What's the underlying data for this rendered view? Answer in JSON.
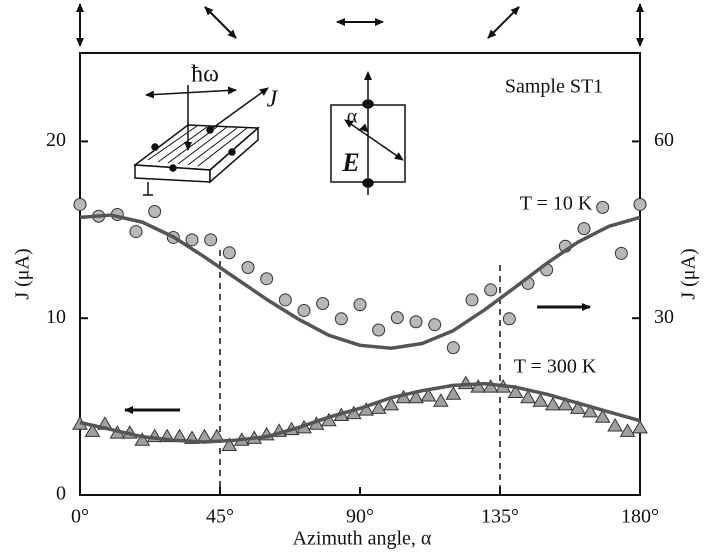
{
  "chart_data": {
    "type": "scatter",
    "annotations": [
      "Sample ST1",
      "ħω",
      "J",
      "α",
      "E"
    ],
    "x_label": "Azimuth angle, α",
    "y_label": "J (μA)",
    "y2_label": "J (μA)",
    "xlim": [
      0,
      180
    ],
    "xticks": [
      {
        "value": 0,
        "label": "0°"
      },
      {
        "value": 45,
        "label": "45°"
      },
      {
        "value": 90,
        "label": "90°"
      },
      {
        "value": 135,
        "label": "135°"
      },
      {
        "value": 180,
        "label": "180°"
      }
    ],
    "ylim": [
      0,
      25
    ],
    "yticks": [
      0,
      10,
      20
    ],
    "y2lim": [
      0,
      75
    ],
    "y2ticks": [
      30,
      60
    ],
    "markers": [
      45,
      135
    ],
    "series": [
      {
        "name": "T = 10 K",
        "marker": "circle",
        "axis": "y2",
        "color": "#b8b8b8",
        "x": [
          0,
          6,
          12,
          18,
          24,
          30,
          36,
          42,
          48,
          54,
          60,
          66,
          72,
          78,
          84,
          90,
          96,
          102,
          108,
          114,
          120,
          126,
          132,
          138,
          144,
          150,
          156,
          162,
          168,
          174,
          180
        ],
        "values": [
          49.3,
          47.3,
          47.6,
          44.7,
          48.1,
          43.7,
          43.3,
          43.3,
          41.1,
          38.6,
          36.7,
          33.1,
          31.3,
          32.5,
          29.9,
          32.3,
          28.0,
          30.1,
          29.4,
          28.9,
          25.0,
          33.1,
          34.8,
          29.9,
          35.9,
          38.2,
          42.2,
          45.2,
          48.8,
          41.0,
          49.3
        ]
      },
      {
        "marker": "line",
        "axis": "y2",
        "color": "#555555",
        "x": [
          0,
          10,
          20,
          30,
          40,
          50,
          60,
          70,
          80,
          90,
          100,
          110,
          120,
          130,
          140,
          150,
          160,
          170,
          180
        ],
        "values": [
          47.1,
          47.5,
          46.3,
          43.8,
          40.4,
          36.8,
          33.2,
          29.9,
          27.1,
          25.4,
          24.9,
          25.7,
          27.9,
          31.4,
          35.3,
          39.3,
          42.9,
          45.6,
          47.1
        ]
      },
      {
        "name": "T = 300 K",
        "marker": "triangle",
        "color": "#a0a0a0",
        "x": [
          0,
          4,
          8,
          12,
          16,
          20,
          24,
          28,
          32,
          36,
          40,
          44,
          48,
          52,
          56,
          60,
          64,
          68,
          72,
          76,
          80,
          84,
          88,
          92,
          96,
          100,
          104,
          108,
          112,
          116,
          120,
          124,
          128,
          132,
          136,
          140,
          144,
          148,
          152,
          156,
          160,
          164,
          168,
          172,
          176,
          180
        ],
        "values": [
          4.0,
          3.6,
          4.0,
          3.5,
          3.5,
          3.1,
          3.3,
          3.3,
          3.3,
          3.2,
          3.3,
          3.3,
          2.8,
          3.1,
          3.2,
          3.4,
          3.6,
          3.7,
          3.8,
          4.0,
          4.2,
          4.5,
          4.6,
          4.8,
          4.9,
          5.1,
          5.5,
          5.5,
          5.6,
          5.3,
          5.7,
          6.3,
          6.1,
          6.1,
          6.1,
          5.8,
          5.5,
          5.3,
          5.1,
          5.1,
          4.9,
          4.7,
          4.4,
          3.9,
          3.6,
          3.8
        ]
      },
      {
        "marker": "line",
        "color": "#555555",
        "x": [
          0,
          10,
          20,
          30,
          40,
          50,
          60,
          70,
          80,
          90,
          100,
          110,
          120,
          130,
          140,
          150,
          160,
          170,
          180
        ],
        "values": [
          4.1,
          3.7,
          3.3,
          3.1,
          3.0,
          3.1,
          3.3,
          3.8,
          4.4,
          4.9,
          5.5,
          5.9,
          6.2,
          6.3,
          6.1,
          5.7,
          5.2,
          4.7,
          4.2
        ]
      }
    ]
  }
}
